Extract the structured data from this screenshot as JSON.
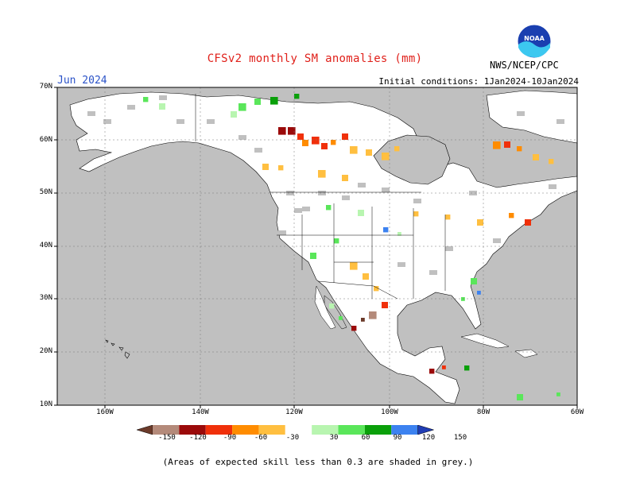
{
  "title": "CFSv2 monthly SM anomalies (mm)",
  "month_label": "Jun 2024",
  "initial_conditions": "Initial conditions: 1Jan2024-10Jan2024",
  "agency": "NWS/NCEP/CPC",
  "logo_text": "NOAA",
  "footnote": "(Areas of expected skill less than 0.3 are shaded in grey.)",
  "lat_ticks": [
    "70N",
    "60N",
    "50N",
    "40N",
    "30N",
    "20N",
    "10N"
  ],
  "lon_ticks": [
    "160W",
    "140W",
    "120W",
    "100W",
    "80W",
    "60W"
  ],
  "colorbar": {
    "ticks": [
      "-150",
      "-120",
      "-90",
      "-60",
      "-30",
      "30",
      "60",
      "90",
      "120",
      "150"
    ],
    "colors": [
      "#6b3a2a",
      "#b48a7a",
      "#9b0a0a",
      "#f0300a",
      "#ff8c00",
      "#ffbf40",
      "#ffffff",
      "#b8f5b0",
      "#5ae65a",
      "#0aa00a",
      "#3c82f0",
      "#1f3cb4"
    ]
  },
  "colors": {
    "ocean": "#c0c0c0",
    "land": "#ffffff",
    "grey_noskill": "#c0c0c0",
    "title": "#e0201a",
    "month": "#2a52c8"
  }
}
